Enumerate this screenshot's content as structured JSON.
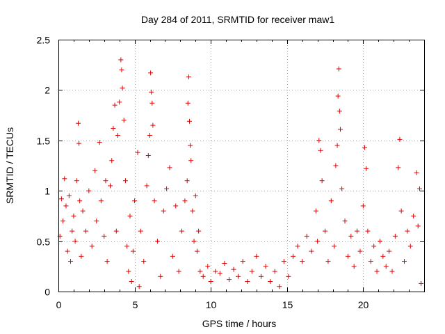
{
  "chart_data": {
    "type": "scatter",
    "title": "Day 284 of 2011, SRMTID for receiver maw1",
    "xlabel": "GPS time / hours",
    "ylabel": "SRMTID / TECUs",
    "xlim": [
      0,
      24
    ],
    "ylim": [
      0,
      2.5
    ],
    "grid": true,
    "marker": "+",
    "color": "#e00000",
    "x_ticks": [
      0,
      5,
      10,
      15,
      20
    ],
    "x_tick_labels": [
      "0",
      "5",
      "10",
      "15",
      "20"
    ],
    "y_ticks": [
      0,
      0.5,
      1,
      1.5,
      2,
      2.5
    ],
    "y_tick_labels": [
      "0",
      "0.5",
      "1",
      "1.5",
      "2",
      "2.5"
    ],
    "series": [
      {
        "name": "maw1",
        "points": [
          [
            0.1,
            0.55
          ],
          [
            0.2,
            0.92
          ],
          [
            0.3,
            0.7
          ],
          [
            0.4,
            1.12
          ],
          [
            0.5,
            0.85
          ],
          [
            0.6,
            0.4
          ],
          [
            0.7,
            0.95
          ],
          [
            0.8,
            0.3
          ],
          [
            0.9,
            0.6
          ],
          [
            1.0,
            0.75
          ],
          [
            1.1,
            0.5
          ],
          [
            1.2,
            1.1
          ],
          [
            1.3,
            1.67
          ],
          [
            1.35,
            1.47
          ],
          [
            1.4,
            0.9
          ],
          [
            1.5,
            0.35
          ],
          [
            1.6,
            0.8
          ],
          [
            1.8,
            0.6
          ],
          [
            2.0,
            1.0
          ],
          [
            2.2,
            0.45
          ],
          [
            2.4,
            1.2
          ],
          [
            2.5,
            0.7
          ],
          [
            2.7,
            1.48
          ],
          [
            2.8,
            0.9
          ],
          [
            3.0,
            0.55
          ],
          [
            3.1,
            1.1
          ],
          [
            3.2,
            0.3
          ],
          [
            3.4,
            1.05
          ],
          [
            3.5,
            1.3
          ],
          [
            3.6,
            1.62
          ],
          [
            3.7,
            1.85
          ],
          [
            3.8,
            0.6
          ],
          [
            3.9,
            1.55
          ],
          [
            4.0,
            1.88
          ],
          [
            4.1,
            2.3
          ],
          [
            4.15,
            2.2
          ],
          [
            4.2,
            2.02
          ],
          [
            4.3,
            1.7
          ],
          [
            4.4,
            1.1
          ],
          [
            4.5,
            0.45
          ],
          [
            4.6,
            0.2
          ],
          [
            4.7,
            0.75
          ],
          [
            4.8,
            0.1
          ],
          [
            4.9,
            0.4
          ],
          [
            5.0,
            0.9
          ],
          [
            5.2,
            1.38
          ],
          [
            5.3,
            0.05
          ],
          [
            5.4,
            0.6
          ],
          [
            5.6,
            0.3
          ],
          [
            5.8,
            1.05
          ],
          [
            5.9,
            1.35
          ],
          [
            6.0,
            1.55
          ],
          [
            6.05,
            2.17
          ],
          [
            6.1,
            1.98
          ],
          [
            6.15,
            1.87
          ],
          [
            6.2,
            1.65
          ],
          [
            6.3,
            0.9
          ],
          [
            6.5,
            0.5
          ],
          [
            6.7,
            0.15
          ],
          [
            6.9,
            0.8
          ],
          [
            7.1,
            1.02
          ],
          [
            7.3,
            1.23
          ],
          [
            7.5,
            0.35
          ],
          [
            7.7,
            0.85
          ],
          [
            7.9,
            0.2
          ],
          [
            8.1,
            0.6
          ],
          [
            8.3,
            0.9
          ],
          [
            8.45,
            1.1
          ],
          [
            8.5,
            1.87
          ],
          [
            8.55,
            2.13
          ],
          [
            8.6,
            1.69
          ],
          [
            8.65,
            1.45
          ],
          [
            8.7,
            1.3
          ],
          [
            8.8,
            0.8
          ],
          [
            8.9,
            0.5
          ],
          [
            9.0,
            0.95
          ],
          [
            9.1,
            0.4
          ],
          [
            9.2,
            0.6
          ],
          [
            9.3,
            0.2
          ],
          [
            9.5,
            0.15
          ],
          [
            9.8,
            0.25
          ],
          [
            10.0,
            0.1
          ],
          [
            10.3,
            0.2
          ],
          [
            10.6,
            0.18
          ],
          [
            10.9,
            0.28
          ],
          [
            11.2,
            0.12
          ],
          [
            11.5,
            0.22
          ],
          [
            11.8,
            0.15
          ],
          [
            12.1,
            0.3
          ],
          [
            12.4,
            0.1
          ],
          [
            12.7,
            0.2
          ],
          [
            13.0,
            0.35
          ],
          [
            13.3,
            0.15
          ],
          [
            13.6,
            0.25
          ],
          [
            13.9,
            0.1
          ],
          [
            14.2,
            0.2
          ],
          [
            14.5,
            0.05
          ],
          [
            14.8,
            0.3
          ],
          [
            15.1,
            0.15
          ],
          [
            15.4,
            0.35
          ],
          [
            15.7,
            0.45
          ],
          [
            16.0,
            0.3
          ],
          [
            16.3,
            0.55
          ],
          [
            16.6,
            0.4
          ],
          [
            16.9,
            0.8
          ],
          [
            17.0,
            0.5
          ],
          [
            17.1,
            1.5
          ],
          [
            17.2,
            1.4
          ],
          [
            17.3,
            1.1
          ],
          [
            17.5,
            0.6
          ],
          [
            17.7,
            0.3
          ],
          [
            17.9,
            0.9
          ],
          [
            18.1,
            0.45
          ],
          [
            18.2,
            1.25
          ],
          [
            18.3,
            1.45
          ],
          [
            18.35,
            1.94
          ],
          [
            18.4,
            2.21
          ],
          [
            18.45,
            1.79
          ],
          [
            18.5,
            1.61
          ],
          [
            18.6,
            1.02
          ],
          [
            18.8,
            0.7
          ],
          [
            19.0,
            0.35
          ],
          [
            19.2,
            0.55
          ],
          [
            19.4,
            0.25
          ],
          [
            19.6,
            0.6
          ],
          [
            19.8,
            0.4
          ],
          [
            20.0,
            0.85
          ],
          [
            20.1,
            1.43
          ],
          [
            20.2,
            1.22
          ],
          [
            20.3,
            0.6
          ],
          [
            20.5,
            0.3
          ],
          [
            20.7,
            0.45
          ],
          [
            20.9,
            0.2
          ],
          [
            21.1,
            0.5
          ],
          [
            21.3,
            0.35
          ],
          [
            21.5,
            0.25
          ],
          [
            21.7,
            0.4
          ],
          [
            21.9,
            0.2
          ],
          [
            22.1,
            0.55
          ],
          [
            22.3,
            1.23
          ],
          [
            22.4,
            1.51
          ],
          [
            22.5,
            0.8
          ],
          [
            22.7,
            0.3
          ],
          [
            22.9,
            0.6
          ],
          [
            23.1,
            0.45
          ],
          [
            23.3,
            0.75
          ],
          [
            23.5,
            1.18
          ],
          [
            23.6,
            0.65
          ],
          [
            23.7,
            1.02
          ],
          [
            23.8,
            0.08
          ]
        ]
      }
    ]
  }
}
